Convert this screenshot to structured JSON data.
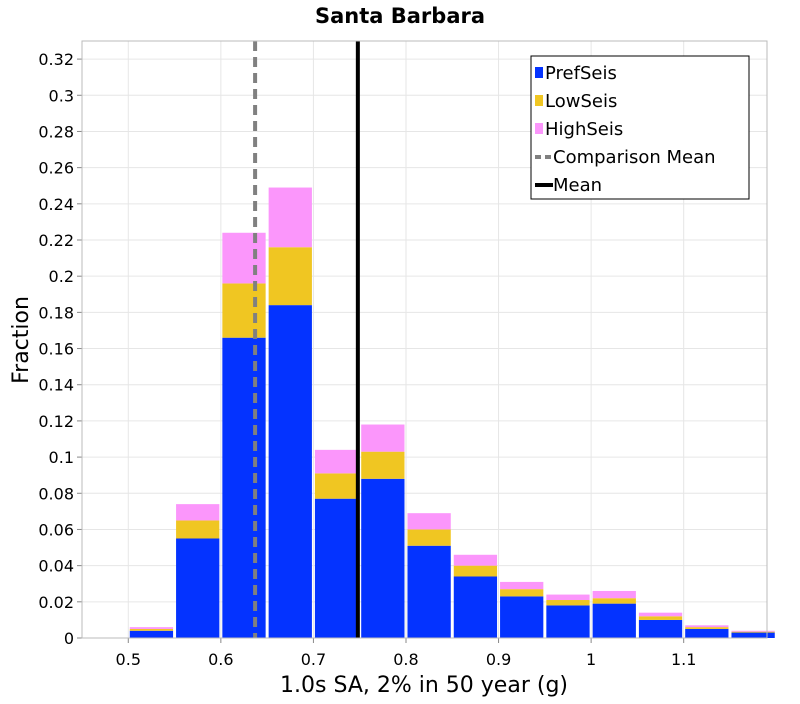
{
  "chart_data": {
    "type": "bar",
    "stacked": true,
    "title": "Santa Barbara",
    "xlabel": "1.0s SA, 2% in 50 year (g)",
    "ylabel": "Fraction",
    "xlim": [
      0.45,
      1.19
    ],
    "ylim": [
      0,
      0.33
    ],
    "grid": true,
    "legend_position": "top-right",
    "x_ticks": [
      "0.5",
      "0.6",
      "0.7",
      "0.8",
      "0.9",
      "1",
      "1.1"
    ],
    "y_ticks": [
      "0",
      "0.02",
      "0.04",
      "0.06",
      "0.08",
      "0.1",
      "0.12",
      "0.14",
      "0.16",
      "0.18",
      "0.2",
      "0.22",
      "0.24",
      "0.26",
      "0.28",
      "0.3",
      "0.32"
    ],
    "bin_width": 0.05,
    "x": [
      0.525,
      0.575,
      0.625,
      0.675,
      0.725,
      0.775,
      0.825,
      0.875,
      0.925,
      0.975,
      1.025,
      1.075,
      1.125,
      1.175
    ],
    "series": [
      {
        "name": "PrefSeis",
        "color": "#0433ff",
        "values": [
          0.004,
          0.055,
          0.166,
          0.184,
          0.077,
          0.088,
          0.051,
          0.034,
          0.023,
          0.018,
          0.019,
          0.01,
          0.005,
          0.003
        ]
      },
      {
        "name": "LowSeis",
        "color": "#f0c622",
        "values": [
          0.001,
          0.01,
          0.03,
          0.032,
          0.014,
          0.015,
          0.009,
          0.006,
          0.004,
          0.003,
          0.003,
          0.002,
          0.001,
          0.0005
        ]
      },
      {
        "name": "HighSeis",
        "color": "#fb96fb",
        "values": [
          0.001,
          0.009,
          0.028,
          0.033,
          0.013,
          0.015,
          0.009,
          0.006,
          0.004,
          0.003,
          0.004,
          0.002,
          0.001,
          0.0005
        ]
      }
    ],
    "lines": [
      {
        "name": "Comparison Mean",
        "x": 0.637,
        "color": "#808080",
        "style": "dashed"
      },
      {
        "name": "Mean",
        "x": 0.748,
        "color": "#000000",
        "style": "solid"
      }
    ]
  }
}
